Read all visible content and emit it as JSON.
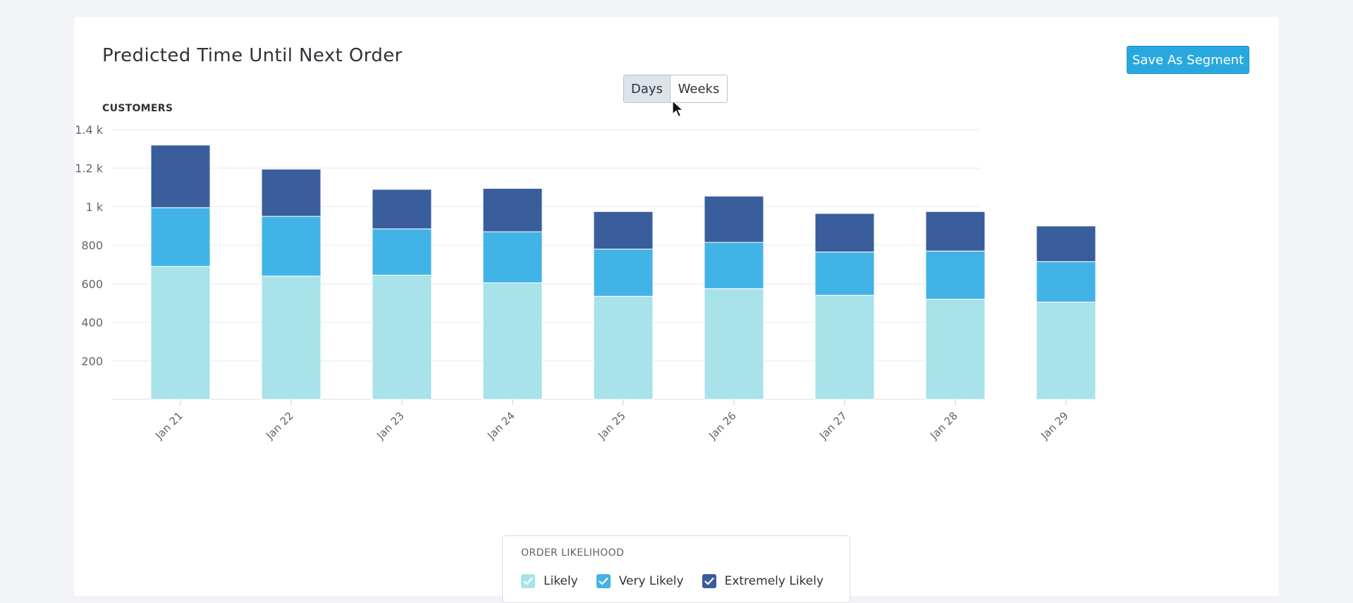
{
  "title": "Predicted Time Until Next Order",
  "save_button": "Save As Segment",
  "toggle": {
    "days": "Days",
    "weeks": "Weeks",
    "selected": "Days"
  },
  "legend": {
    "title": "ORDER LIKELIHOOD",
    "items": [
      {
        "label": "Likely",
        "color": "#a8e2ea"
      },
      {
        "label": "Very Likely",
        "color": "#42b3e6"
      },
      {
        "label": "Extremely Likely",
        "color": "#3a5e9c"
      }
    ]
  },
  "chart_data": {
    "type": "bar",
    "stacked": true,
    "ylabel": "CUSTOMERS",
    "ylim": [
      0,
      1400
    ],
    "yticks": [
      200,
      400,
      600,
      800,
      1000,
      1200,
      1400
    ],
    "ytick_labels": [
      "200",
      "400",
      "600",
      "800",
      "1 k",
      "1.2 k",
      "1.4 k"
    ],
    "categories": [
      "Jan 21",
      "Jan 22",
      "Jan 23",
      "Jan 24",
      "Jan 25",
      "Jan 26",
      "Jan 27",
      "Jan 28",
      "Jan 29"
    ],
    "series": [
      {
        "name": "Likely",
        "color": "#a8e2ea",
        "values": [
          690,
          640,
          645,
          605,
          535,
          575,
          540,
          520,
          505
        ]
      },
      {
        "name": "Very Likely",
        "color": "#42b3e6",
        "values": [
          305,
          310,
          240,
          265,
          245,
          240,
          225,
          250,
          210
        ]
      },
      {
        "name": "Extremely Likely",
        "color": "#3a5e9c",
        "values": [
          325,
          245,
          205,
          225,
          195,
          240,
          200,
          205,
          185
        ]
      }
    ],
    "grid": true,
    "legend_position": "bottom"
  }
}
